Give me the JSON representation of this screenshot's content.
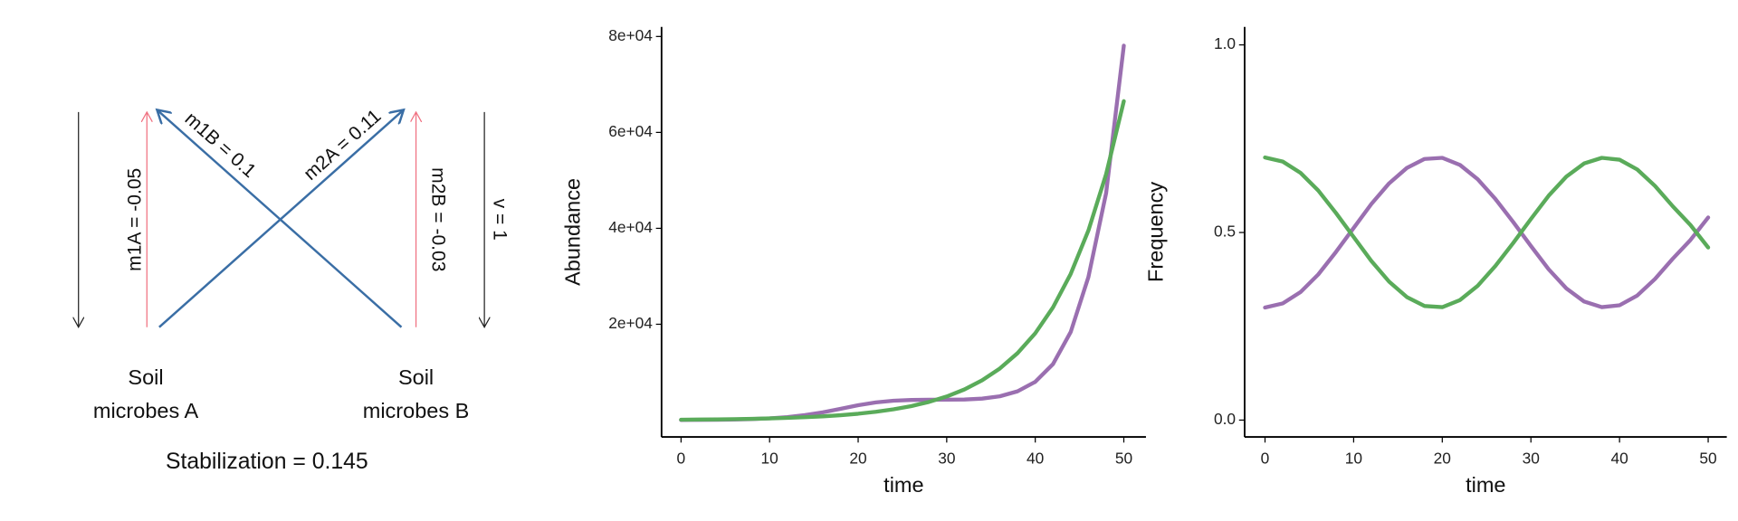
{
  "diagram": {
    "arrow_labels": [
      "m1A = -0.05",
      "m1B = 0.1",
      "m2A = 0.11",
      "m2B = -0.03",
      "v = 1"
    ],
    "nodes": [
      {
        "lines": [
          "Soil",
          "microbes A"
        ]
      },
      {
        "lines": [
          "Soil",
          "microbes B"
        ]
      }
    ],
    "stabilization": "Stabilization = 0.145"
  },
  "chart_data": [
    {
      "type": "line",
      "x_label": "time",
      "y_label": "Abundance",
      "x": [
        0,
        2,
        4,
        6,
        8,
        10,
        12,
        14,
        16,
        18,
        20,
        22,
        24,
        26,
        28,
        30,
        32,
        34,
        36,
        38,
        40,
        42,
        44,
        46,
        48,
        50
      ],
      "series": [
        {
          "color": "#9a6fb0",
          "values": [
            43,
            59,
            87,
            138,
            230,
            385,
            646,
            1055,
            1640,
            2376,
            3126,
            3710,
            4060,
            4209,
            4261,
            4276,
            4307,
            4494,
            4979,
            6019,
            7993,
            11685,
            18374,
            29833,
            47345,
            78090
          ]
        },
        {
          "color": "#5aab5a",
          "values": [
            100,
            130,
            168,
            218,
            283,
            367,
            476,
            617,
            800,
            1038,
            1346,
            1746,
            2264,
            2937,
            3809,
            4940,
            6407,
            8310,
            10777,
            13977,
            18128,
            23511,
            30492,
            39546,
            51290,
            66520
          ]
        }
      ],
      "xlim": [
        -2.2,
        52.5
      ],
      "ylim": [
        -3500,
        82000
      ],
      "xticks": [
        0,
        10,
        20,
        30,
        40,
        50
      ],
      "yticks": [
        {
          "value": 20000,
          "label": "2e+04"
        },
        {
          "value": 40000,
          "label": "4e+04"
        },
        {
          "value": 60000,
          "label": "6e+04"
        },
        {
          "value": 80000,
          "label": "8e+04"
        }
      ]
    },
    {
      "type": "line",
      "x_label": "time",
      "y_label": "Frequency",
      "x": [
        0,
        2,
        4,
        6,
        8,
        10,
        12,
        14,
        16,
        18,
        20,
        22,
        24,
        26,
        28,
        30,
        32,
        34,
        36,
        38,
        40,
        42,
        44,
        46,
        48,
        50
      ],
      "series": [
        {
          "color": "#9a6fb0",
          "values": [
            0.3,
            0.311,
            0.341,
            0.388,
            0.448,
            0.512,
            0.576,
            0.631,
            0.672,
            0.696,
            0.699,
            0.68,
            0.642,
            0.589,
            0.528,
            0.464,
            0.402,
            0.351,
            0.316,
            0.301,
            0.306,
            0.332,
            0.376,
            0.43,
            0.48,
            0.54
          ]
        },
        {
          "color": "#5aab5a",
          "values": [
            0.7,
            0.689,
            0.659,
            0.612,
            0.552,
            0.488,
            0.424,
            0.369,
            0.328,
            0.304,
            0.301,
            0.32,
            0.358,
            0.411,
            0.472,
            0.536,
            0.598,
            0.649,
            0.684,
            0.699,
            0.694,
            0.668,
            0.624,
            0.57,
            0.52,
            0.46
          ]
        }
      ],
      "xlim": [
        -2.3,
        52.1
      ],
      "ylim": [
        -0.045,
        1.048
      ],
      "xticks": [
        0,
        10,
        20,
        30,
        40,
        50
      ],
      "yticks": [
        {
          "value": 0,
          "label": "0.0"
        },
        {
          "value": 0.5,
          "label": "0.5"
        },
        {
          "value": 1,
          "label": "1.0"
        }
      ]
    }
  ]
}
